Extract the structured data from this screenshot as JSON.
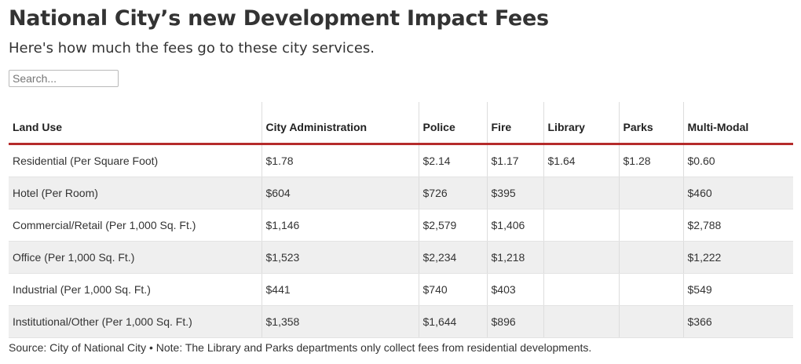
{
  "title": "National City’s new Development Impact Fees",
  "subtitle": "Here's how much the fees go to these city services.",
  "search": {
    "placeholder": "Search..."
  },
  "source": "Source: City of National City • Note: The Library and Parks departments only collect fees from residential developments.",
  "colors": {
    "header_rule": "#b52b2b",
    "row_stripe": "#efefef"
  },
  "chart_data": {
    "type": "table",
    "title": "National City’s new Development Impact Fees",
    "columns": [
      "Land Use",
      "City Administration",
      "Police",
      "Fire",
      "Library",
      "Parks",
      "Multi-Modal"
    ],
    "rows": [
      [
        "Residential (Per Square Foot)",
        "$1.78",
        "$2.14",
        "$1.17",
        "$1.64",
        "$1.28",
        "$0.60"
      ],
      [
        "Hotel (Per Room)",
        "$604",
        "$726",
        "$395",
        "",
        "",
        "$460"
      ],
      [
        "Commercial/Retail (Per 1,000 Sq. Ft.)",
        "$1,146",
        "$2,579",
        "$1,406",
        "",
        "",
        "$2,788"
      ],
      [
        "Office (Per 1,000 Sq. Ft.)",
        "$1,523",
        "$2,234",
        "$1,218",
        "",
        "",
        "$1,222"
      ],
      [
        "Industrial (Per 1,000 Sq. Ft.)",
        "$441",
        "$740",
        "$403",
        "",
        "",
        "$549"
      ],
      [
        "Institutional/Other (Per 1,000 Sq. Ft.)",
        "$1,358",
        "$1,644",
        "$896",
        "",
        "",
        "$366"
      ]
    ]
  }
}
